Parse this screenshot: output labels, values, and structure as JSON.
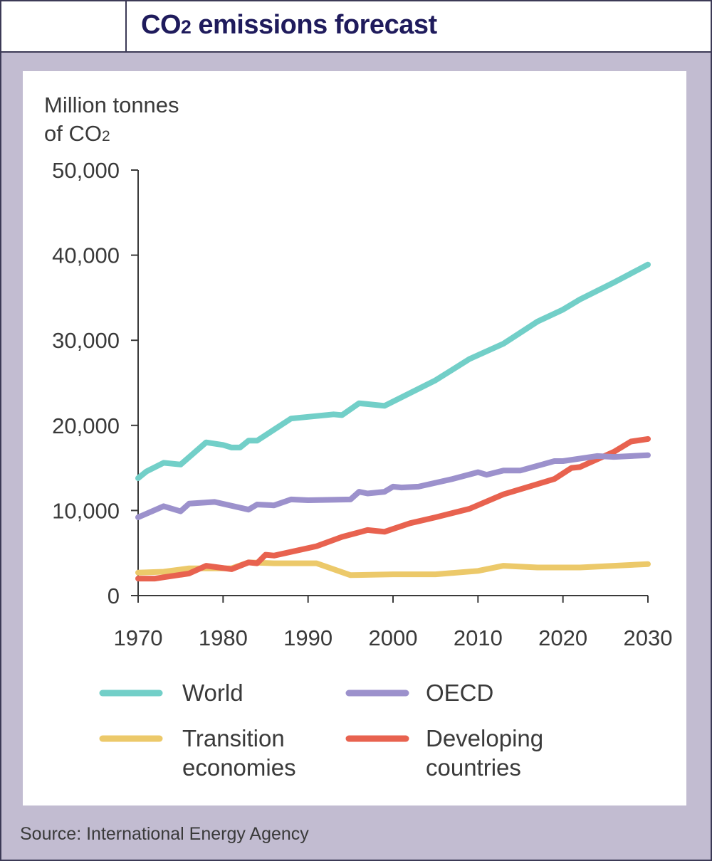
{
  "header": {
    "title_prefix": "CO",
    "title_sub": "2",
    "title_suffix": " emissions forecast"
  },
  "source": "Source: International Energy Agency",
  "chart_data": {
    "type": "line",
    "title": "CO2 emissions forecast",
    "ylabel_line1": "Million tonnes",
    "ylabel_line2_prefix": "of CO",
    "ylabel_line2_sub": "2",
    "xlabel": "",
    "xlim": [
      1970,
      2030
    ],
    "ylim": [
      0,
      50000
    ],
    "x_ticks": [
      1970,
      1980,
      1990,
      2000,
      2010,
      2020,
      2030
    ],
    "y_ticks": [
      0,
      10000,
      20000,
      30000,
      40000,
      50000
    ],
    "y_tick_labels": [
      "0",
      "10,000",
      "20,000",
      "30,000",
      "40,000",
      "50,000"
    ],
    "grid": false,
    "legend_placement": "bottom",
    "series": [
      {
        "name": "World",
        "color": "#72cfc8",
        "points": [
          [
            1970,
            13800
          ],
          [
            1971,
            14600
          ],
          [
            1973,
            15600
          ],
          [
            1975,
            15400
          ],
          [
            1978,
            18000
          ],
          [
            1980,
            17700
          ],
          [
            1981,
            17400
          ],
          [
            1982,
            17400
          ],
          [
            1983,
            18200
          ],
          [
            1984,
            18200
          ],
          [
            1988,
            20800
          ],
          [
            1993,
            21300
          ],
          [
            1994,
            21200
          ],
          [
            1996,
            22600
          ],
          [
            1999,
            22300
          ],
          [
            2005,
            25300
          ],
          [
            2009,
            27800
          ],
          [
            2013,
            29600
          ],
          [
            2017,
            32200
          ],
          [
            2020,
            33600
          ],
          [
            2022,
            34800
          ],
          [
            2026,
            36800
          ],
          [
            2030,
            38900
          ]
        ]
      },
      {
        "name": "OECD",
        "color": "#9c91cc",
        "points": [
          [
            1970,
            9200
          ],
          [
            1973,
            10500
          ],
          [
            1975,
            9900
          ],
          [
            1976,
            10800
          ],
          [
            1979,
            11000
          ],
          [
            1983,
            10100
          ],
          [
            1984,
            10700
          ],
          [
            1986,
            10600
          ],
          [
            1988,
            11300
          ],
          [
            1990,
            11200
          ],
          [
            1995,
            11300
          ],
          [
            1996,
            12200
          ],
          [
            1997,
            12000
          ],
          [
            1999,
            12200
          ],
          [
            2000,
            12800
          ],
          [
            2001,
            12700
          ],
          [
            2003,
            12800
          ],
          [
            2007,
            13700
          ],
          [
            2010,
            14500
          ],
          [
            2011,
            14200
          ],
          [
            2013,
            14700
          ],
          [
            2015,
            14700
          ],
          [
            2019,
            15800
          ],
          [
            2020,
            15800
          ],
          [
            2024,
            16400
          ],
          [
            2026,
            16300
          ],
          [
            2030,
            16500
          ]
        ]
      },
      {
        "name": "Transition economies",
        "color": "#ecc96a",
        "points": [
          [
            1970,
            2700
          ],
          [
            1973,
            2800
          ],
          [
            1976,
            3200
          ],
          [
            1981,
            3200
          ],
          [
            1983,
            3900
          ],
          [
            1986,
            3800
          ],
          [
            1991,
            3800
          ],
          [
            1995,
            2400
          ],
          [
            2000,
            2500
          ],
          [
            2005,
            2500
          ],
          [
            2010,
            2900
          ],
          [
            2013,
            3500
          ],
          [
            2017,
            3300
          ],
          [
            2022,
            3300
          ],
          [
            2030,
            3700
          ]
        ]
      },
      {
        "name": "Developing countries",
        "color": "#e8624f",
        "points": [
          [
            1970,
            2000
          ],
          [
            1972,
            2000
          ],
          [
            1976,
            2600
          ],
          [
            1978,
            3500
          ],
          [
            1981,
            3100
          ],
          [
            1983,
            3900
          ],
          [
            1984,
            3800
          ],
          [
            1985,
            4800
          ],
          [
            1986,
            4700
          ],
          [
            1991,
            5800
          ],
          [
            1994,
            6900
          ],
          [
            1997,
            7700
          ],
          [
            1999,
            7500
          ],
          [
            2002,
            8500
          ],
          [
            2005,
            9200
          ],
          [
            2009,
            10200
          ],
          [
            2013,
            11900
          ],
          [
            2017,
            13100
          ],
          [
            2019,
            13700
          ],
          [
            2021,
            15000
          ],
          [
            2022,
            15100
          ],
          [
            2026,
            16900
          ],
          [
            2028,
            18100
          ],
          [
            2030,
            18400
          ]
        ]
      }
    ]
  }
}
